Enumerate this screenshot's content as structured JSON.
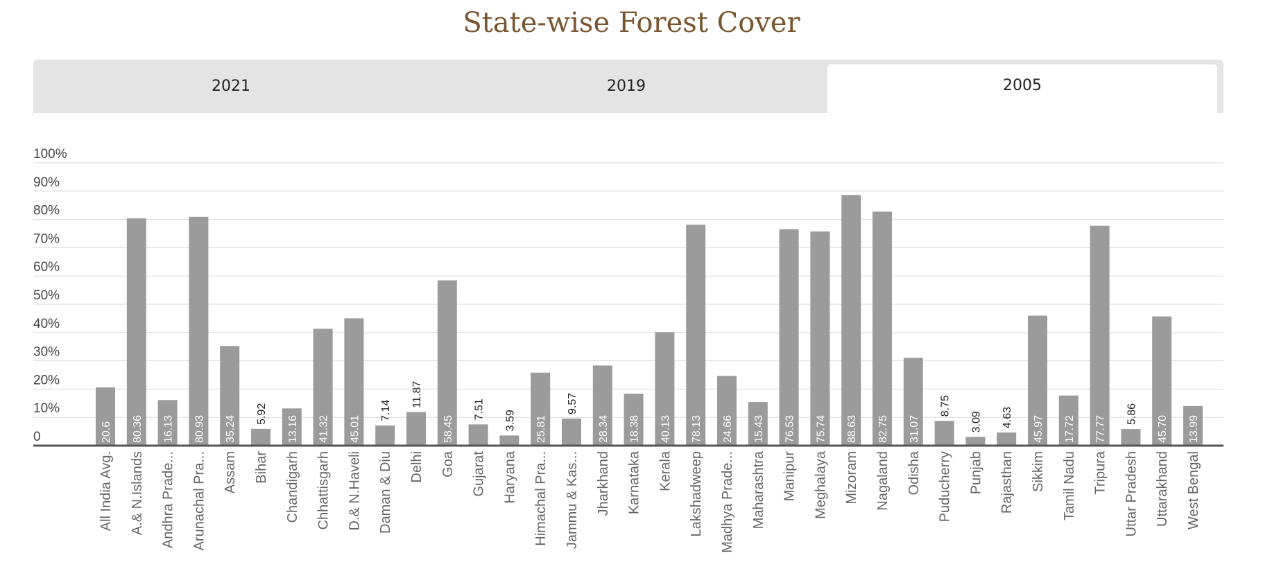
{
  "page": {
    "title": "State-wise Forest Cover"
  },
  "tabs": [
    {
      "label": "2021",
      "active": false
    },
    {
      "label": "2019",
      "active": false
    },
    {
      "label": "2005",
      "active": true
    }
  ],
  "colors": {
    "bar": "#9b9b9b",
    "title": "#7a5530",
    "grid": "#d9d9d9",
    "axis": "#555555"
  },
  "chart_data": {
    "type": "bar",
    "title": "",
    "xlabel": "",
    "ylabel": "",
    "ylim": [
      0,
      100
    ],
    "yticks": [
      "0",
      "10%",
      "20%",
      "30%",
      "40%",
      "50%",
      "60%",
      "70%",
      "80%",
      "90%",
      "100%"
    ],
    "grid": true,
    "categories": [
      "All India Avg.",
      "A.& N.Islands",
      "Andhra Prade...",
      "Arunachal Pra...",
      "Assam",
      "Bihar",
      "Chandigarh",
      "Chhattisgarh",
      "D.& N.Haveli",
      "Daman & Diu",
      "Delhi",
      "Goa",
      "Gujarat",
      "Haryana",
      "Himachal Pra...",
      "Jammu & Kas...",
      "Jharkhand",
      "Karnataka",
      "Kerala",
      "Lakshadweep",
      "Madhya Prade...",
      "Maharashtra",
      "Manipur",
      "Meghalaya",
      "Mizoram",
      "Nagaland",
      "Odisha",
      "Puducherry",
      "Punjab",
      "Rajasthan",
      "Sikkim",
      "Tamil Nadu",
      "Tripura",
      "Uttar Pradesh",
      "Uttarakhand",
      "West Bengal"
    ],
    "values": [
      20.6,
      80.36,
      16.13,
      80.93,
      35.24,
      5.92,
      13.16,
      41.32,
      45.01,
      7.14,
      11.87,
      58.45,
      7.51,
      3.59,
      25.81,
      9.57,
      28.34,
      18.38,
      40.13,
      78.13,
      24.66,
      15.43,
      76.53,
      75.74,
      88.63,
      82.75,
      31.07,
      8.75,
      3.09,
      4.63,
      45.97,
      17.72,
      77.77,
      5.86,
      45.7,
      13.99
    ],
    "labels": [
      "20.6",
      "80.36",
      "16.13",
      "80.93",
      "35.24",
      "5.92",
      "13.16",
      "41.32",
      "45.01",
      "7.14",
      "11.87",
      "58.45",
      "7.51",
      "3.59",
      "25.81",
      "9.57",
      "28.34",
      "18.38",
      "40.13",
      "78.13",
      "24.66",
      "15.43",
      "76.53",
      "75.74",
      "88.63",
      "82.75",
      "31.07",
      "8.75",
      "3.09",
      "4.63",
      "45.97",
      "17.72",
      "77.77",
      "5.86",
      "45.70",
      "13.99"
    ]
  }
}
